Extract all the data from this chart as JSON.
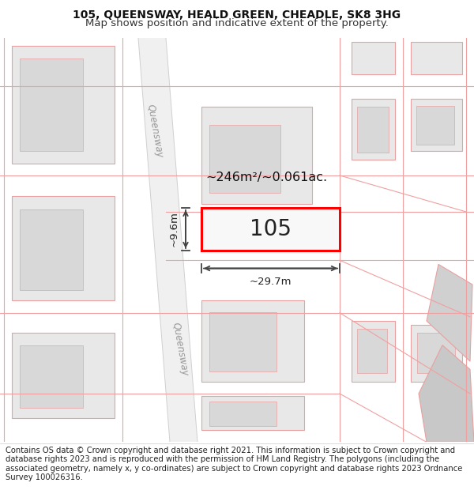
{
  "title_line1": "105, QUEENSWAY, HEALD GREEN, CHEADLE, SK8 3HG",
  "title_line2": "Map shows position and indicative extent of the property.",
  "footer_text": "Contains OS data © Crown copyright and database right 2021. This information is subject to Crown copyright and database rights 2023 and is reproduced with the permission of HM Land Registry. The polygons (including the associated geometry, namely x, y co-ordinates) are subject to Crown copyright and database rights 2023 Ordnance Survey 100026316.",
  "bg_color": "#ffffff",
  "property_label": "105",
  "area_label": "~246m²/~0.061ac.",
  "width_label": "~29.7m",
  "height_label": "~9.6m",
  "street_label_top": "Queensway",
  "street_label_bottom": "Queensway",
  "property_color": "#ff0000",
  "block_fill": "#e8e8e8",
  "block_edge": "#e8a0a0",
  "road_fill": "#f0f0f0",
  "boundary_color": "#f0a0a0",
  "dim_color": "#333333",
  "title_fontsize": 10,
  "footer_fontsize": 7.2
}
